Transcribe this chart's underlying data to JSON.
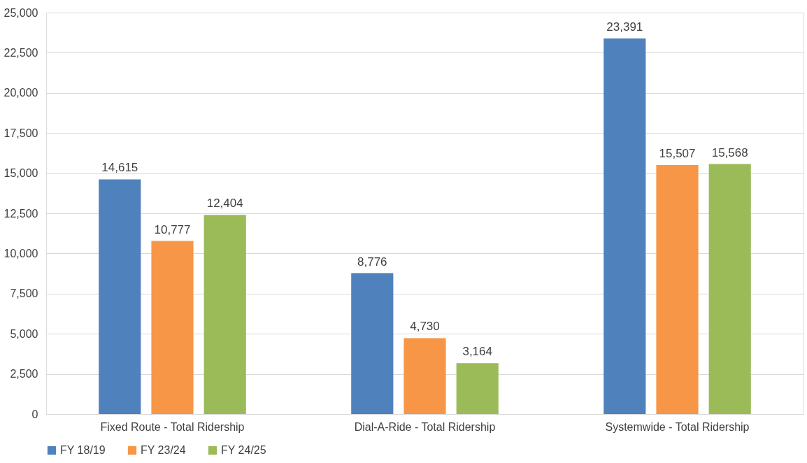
{
  "chart_data": {
    "type": "bar",
    "categories": [
      "Fixed Route - Total Ridership",
      "Dial-A-Ride - Total Ridership",
      "Systemwide - Total Ridership"
    ],
    "series": [
      {
        "name": "FY 18/19",
        "color": "#4f81bd",
        "values": [
          14615,
          8776,
          23391
        ],
        "value_labels": [
          "14,615",
          "8,776",
          "23,391"
        ]
      },
      {
        "name": "FY 23/24",
        "color": "#f79646",
        "values": [
          10777,
          4730,
          15507
        ],
        "value_labels": [
          "10,777",
          "4,730",
          "15,507"
        ]
      },
      {
        "name": "FY 24/25",
        "color": "#9bbb59",
        "values": [
          12404,
          3164,
          15568
        ],
        "value_labels": [
          "12,404",
          "3,164",
          "15,568"
        ]
      }
    ],
    "ylim": [
      0,
      25000
    ],
    "yticks": [
      {
        "value": 0,
        "label": "0"
      },
      {
        "value": 2500,
        "label": "2,500"
      },
      {
        "value": 5000,
        "label": "5,000"
      },
      {
        "value": 7500,
        "label": "7,500"
      },
      {
        "value": 10000,
        "label": "10,000"
      },
      {
        "value": 12500,
        "label": "12,500"
      },
      {
        "value": 15000,
        "label": "15,000"
      },
      {
        "value": 17500,
        "label": "17,500"
      },
      {
        "value": 20000,
        "label": "20,000"
      },
      {
        "value": 22500,
        "label": "22,500"
      },
      {
        "value": 25000,
        "label": "25,000"
      }
    ],
    "grid": "y",
    "legend": "bottom"
  }
}
